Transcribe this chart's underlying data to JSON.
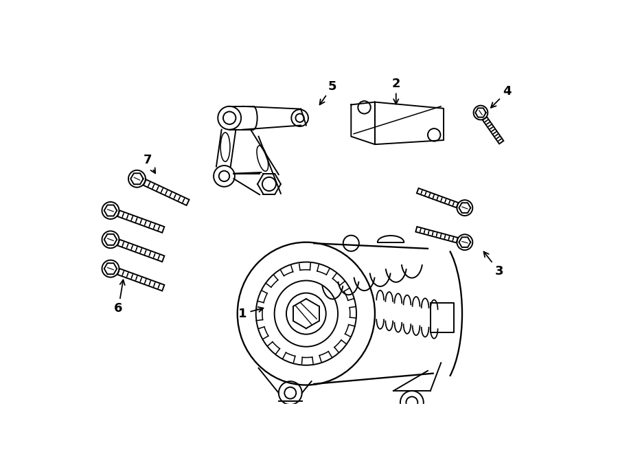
{
  "background_color": "#ffffff",
  "line_color": "#000000",
  "line_width": 1.4,
  "label_fontsize": 13,
  "fig_width": 9.0,
  "fig_height": 6.61,
  "dpi": 100
}
